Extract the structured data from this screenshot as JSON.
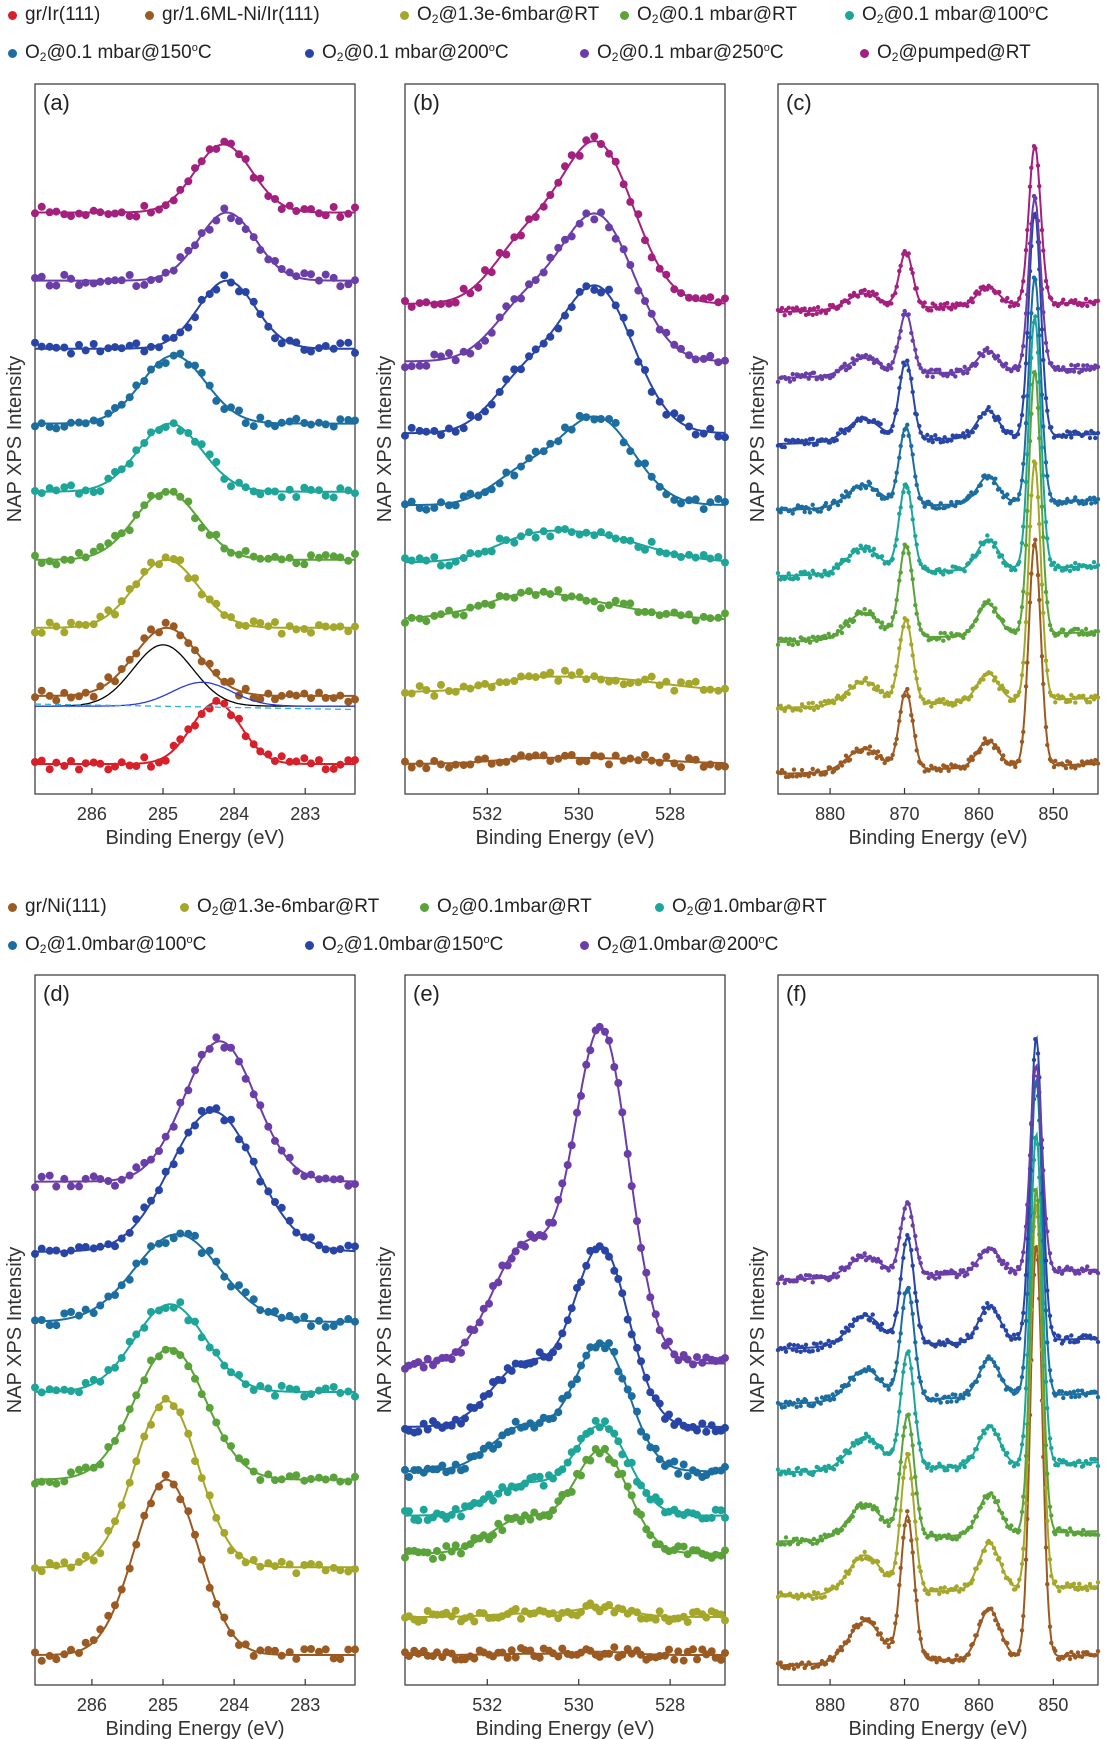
{
  "legend_top": [
    {
      "label": "gr/Ir(111)",
      "color": "#d6202a"
    },
    {
      "label": "gr/1.6ML-Ni/Ir(111)",
      "color": "#9a5a22"
    },
    {
      "label": "O2@1.3e-6mbar@RT",
      "color": "#a5a72a"
    },
    {
      "label": "O2@0.1 mbar@RT",
      "color": "#5aa33a"
    },
    {
      "label": "O2@0.1 mbar@100oC",
      "color": "#1ea59a"
    },
    {
      "label": "O2@0.1 mbar@150oC",
      "color": "#1c6da0"
    },
    {
      "label": "O2@0.1 mbar@200oC",
      "color": "#2845a6"
    },
    {
      "label": "O2@0.1 mbar@250oC",
      "color": "#6a3ea8"
    },
    {
      "label": "O2@pumped@RT",
      "color": "#a3207e"
    }
  ],
  "legend_bottom": [
    {
      "label": "gr/Ni(111)",
      "color": "#9a5a22"
    },
    {
      "label": "O2@1.3e-6mbar@RT",
      "color": "#a5a72a"
    },
    {
      "label": "O2@0.1mbar@RT",
      "color": "#5aa33a"
    },
    {
      "label": "O2@1.0mbar@RT",
      "color": "#1ea59a"
    },
    {
      "label": "O2@1.0mbar@100oC",
      "color": "#1c6da0"
    },
    {
      "label": "O2@1.0mbar@150oC",
      "color": "#2845a6"
    },
    {
      "label": "O2@1.0mbar@200oC",
      "color": "#6a3ea8"
    }
  ],
  "chart_data": [
    {
      "id": "a",
      "type": "line",
      "title": "(a)",
      "xlabel": "Binding Energy (eV)",
      "ylabel": "NAP XPS Intensity",
      "xlim": [
        286.8,
        282.3
      ],
      "xticks": [
        "286",
        "285",
        "284",
        "283"
      ],
      "series": [
        {
          "name": "gr/Ir(111)",
          "color": "#d6202a",
          "center": 284.25,
          "width": 0.35,
          "height": 0.9,
          "offset": 0.0
        },
        {
          "name": "gr/1.6ML-Ni/Ir(111)",
          "color": "#9a5a22",
          "center": 284.95,
          "width": 0.45,
          "height": 1.0,
          "offset": 1.0
        },
        {
          "name": "O2@1.3e-6mbar@RT",
          "color": "#a5a72a",
          "center": 284.95,
          "width": 0.45,
          "height": 1.0,
          "offset": 2.0
        },
        {
          "name": "O2@0.1 mbar@RT",
          "color": "#5aa33a",
          "center": 284.95,
          "width": 0.45,
          "height": 1.0,
          "offset": 3.0
        },
        {
          "name": "O2@0.1 mbar@100oC",
          "color": "#1ea59a",
          "center": 284.9,
          "width": 0.45,
          "height": 1.0,
          "offset": 4.0
        },
        {
          "name": "O2@0.1 mbar@150oC",
          "color": "#1c6da0",
          "center": 284.85,
          "width": 0.45,
          "height": 1.0,
          "offset": 5.0
        },
        {
          "name": "O2@0.1 mbar@200oC",
          "color": "#2845a6",
          "center": 284.1,
          "width": 0.4,
          "height": 1.0,
          "offset": 6.1
        },
        {
          "name": "O2@0.1 mbar@250oC",
          "color": "#6a3ea8",
          "center": 284.1,
          "width": 0.4,
          "height": 1.0,
          "offset": 7.1
        },
        {
          "name": "O2@pumped@RT",
          "color": "#a3207e",
          "center": 284.15,
          "width": 0.4,
          "height": 1.0,
          "offset": 8.1
        }
      ]
    },
    {
      "id": "b",
      "type": "line",
      "title": "(b)",
      "xlabel": "Binding Energy (eV)",
      "ylabel": "NAP XPS Intensity",
      "xlim": [
        533.8,
        526.8
      ],
      "xticks": [
        "532",
        "530",
        "528"
      ],
      "series": [
        {
          "name": "gr/1.6ML-Ni/Ir(111)",
          "color": "#9a5a22",
          "center": 529.7,
          "width": 1.5,
          "height": 0.08,
          "offset": 0.0
        },
        {
          "name": "O2@1.3e-6mbar@RT",
          "color": "#a5a72a",
          "center": 529.7,
          "width": 1.5,
          "height": 0.2,
          "offset": 1.0
        },
        {
          "name": "O2@0.1 mbar@RT",
          "color": "#5aa33a",
          "center": 530.5,
          "width": 1.5,
          "height": 0.3,
          "offset": 2.0
        },
        {
          "name": "O2@0.1 mbar@100oC",
          "color": "#1ea59a",
          "center": 529.9,
          "width": 1.3,
          "height": 0.4,
          "offset": 2.8
        },
        {
          "name": "O2@0.1 mbar@150oC",
          "color": "#1c6da0",
          "center": 529.6,
          "width": 0.8,
          "height": 1.2,
          "offset": 3.6
        },
        {
          "name": "O2@0.1 mbar@200oC",
          "color": "#2845a6",
          "center": 529.6,
          "width": 0.8,
          "height": 2.0,
          "offset": 4.6
        },
        {
          "name": "O2@0.1 mbar@250oC",
          "color": "#6a3ea8",
          "center": 529.6,
          "width": 0.8,
          "height": 2.0,
          "offset": 5.6
        },
        {
          "name": "O2@pumped@RT",
          "color": "#a3207e",
          "center": 529.6,
          "width": 0.8,
          "height": 2.2,
          "offset": 6.4
        }
      ]
    },
    {
      "id": "c",
      "type": "line",
      "title": "(c)",
      "xlabel": "Binding Energy (eV)",
      "ylabel": "NAP XPS Intensity",
      "xlim": [
        887,
        844
      ],
      "xticks": [
        "880",
        "870",
        "860",
        "850"
      ],
      "series": [
        {
          "name": "gr/1.6ML-Ni/Ir(111)",
          "color": "#9a5a22",
          "center": 852.5,
          "width": 0.8,
          "height": 3.4,
          "offset": 0.0
        },
        {
          "name": "O2@1.3e-6mbar@RT",
          "color": "#a5a72a",
          "center": 852.5,
          "width": 0.8,
          "height": 3.6,
          "offset": 1.0
        },
        {
          "name": "O2@0.1 mbar@RT",
          "color": "#5aa33a",
          "center": 852.5,
          "width": 0.8,
          "height": 4.0,
          "offset": 2.0
        },
        {
          "name": "O2@0.1 mbar@100oC",
          "color": "#1ea59a",
          "center": 852.5,
          "width": 0.8,
          "height": 3.8,
          "offset": 3.0
        },
        {
          "name": "O2@0.1 mbar@150oC",
          "color": "#1c6da0",
          "center": 852.5,
          "width": 0.8,
          "height": 3.4,
          "offset": 4.0
        },
        {
          "name": "O2@0.1 mbar@200oC",
          "color": "#2845a6",
          "center": 852.5,
          "width": 0.8,
          "height": 3.4,
          "offset": 5.0
        },
        {
          "name": "O2@0.1 mbar@250oC",
          "color": "#6a3ea8",
          "center": 852.5,
          "width": 0.8,
          "height": 2.6,
          "offset": 6.0
        },
        {
          "name": "O2@pumped@RT",
          "color": "#a3207e",
          "center": 852.5,
          "width": 0.8,
          "height": 2.4,
          "offset": 7.0
        }
      ]
    },
    {
      "id": "d",
      "type": "line",
      "title": "(d)",
      "xlabel": "Binding Energy (eV)",
      "ylabel": "NAP XPS Intensity",
      "xlim": [
        286.8,
        282.3
      ],
      "xticks": [
        "286",
        "285",
        "284",
        "283"
      ],
      "series": [
        {
          "name": "gr/Ni(111)",
          "color": "#9a5a22",
          "center": 284.95,
          "width": 0.45,
          "height": 2.0,
          "offset": 0.0
        },
        {
          "name": "O2@1.3e-6mbar@RT",
          "color": "#a5a72a",
          "center": 284.95,
          "width": 0.45,
          "height": 1.9,
          "offset": 1.0
        },
        {
          "name": "O2@0.1mbar@RT",
          "color": "#5aa33a",
          "center": 284.9,
          "width": 0.5,
          "height": 1.5,
          "offset": 2.0
        },
        {
          "name": "O2@1.0mbar@RT",
          "color": "#1ea59a",
          "center": 284.9,
          "width": 0.5,
          "height": 1.0,
          "offset": 3.0
        },
        {
          "name": "O2@1.0mbar@100oC",
          "color": "#1c6da0",
          "center": 284.8,
          "width": 0.6,
          "height": 1.0,
          "offset": 3.8
        },
        {
          "name": "O2@1.0mbar@150oC",
          "color": "#2845a6",
          "center": 284.3,
          "width": 0.6,
          "height": 1.6,
          "offset": 4.6
        },
        {
          "name": "O2@1.0mbar@200oC",
          "color": "#6a3ea8",
          "center": 284.2,
          "width": 0.5,
          "height": 1.6,
          "offset": 5.4
        }
      ]
    },
    {
      "id": "e",
      "type": "line",
      "title": "(e)",
      "xlabel": "Binding Energy (eV)",
      "ylabel": "NAP XPS Intensity",
      "xlim": [
        533.8,
        526.8
      ],
      "xticks": [
        "532",
        "530",
        "528"
      ],
      "series": [
        {
          "name": "gr/Ni(111)",
          "color": "#9a5a22",
          "center": 529.5,
          "width": 0.6,
          "height": 0.05,
          "offset": 0.0
        },
        {
          "name": "O2@1.3e-6mbar@RT",
          "color": "#a5a72a",
          "center": 529.5,
          "width": 0.6,
          "height": 0.15,
          "offset": 0.6
        },
        {
          "name": "O2@0.1mbar@RT",
          "color": "#5aa33a",
          "center": 529.5,
          "width": 0.6,
          "height": 1.6,
          "offset": 1.6
        },
        {
          "name": "O2@1.0mbar@RT",
          "color": "#1ea59a",
          "center": 529.5,
          "width": 0.6,
          "height": 1.4,
          "offset": 2.2
        },
        {
          "name": "O2@1.0mbar@100oC",
          "color": "#1c6da0",
          "center": 529.5,
          "width": 0.6,
          "height": 2.0,
          "offset": 2.9
        },
        {
          "name": "O2@1.0mbar@150oC",
          "color": "#2845a6",
          "center": 529.5,
          "width": 0.6,
          "height": 2.8,
          "offset": 3.6
        },
        {
          "name": "O2@1.0mbar@200oC",
          "color": "#6a3ea8",
          "center": 529.5,
          "width": 0.6,
          "height": 5.2,
          "offset": 4.6
        }
      ]
    },
    {
      "id": "f",
      "type": "line",
      "title": "(f)",
      "xlabel": "Binding Energy (eV)",
      "ylabel": "NAP XPS Intensity",
      "xlim": [
        887,
        844
      ],
      "xticks": [
        "880",
        "870",
        "860",
        "850"
      ],
      "series": [
        {
          "name": "gr/Ni(111)",
          "color": "#9a5a22",
          "center": 852.3,
          "width": 0.8,
          "height": 6.0,
          "offset": 0.0
        },
        {
          "name": "O2@1.3e-6mbar@RT",
          "color": "#a5a72a",
          "center": 852.3,
          "width": 0.8,
          "height": 5.6,
          "offset": 1.0
        },
        {
          "name": "O2@0.1mbar@RT",
          "color": "#5aa33a",
          "center": 852.3,
          "width": 0.8,
          "height": 5.0,
          "offset": 1.8
        },
        {
          "name": "O2@1.0mbar@RT",
          "color": "#1ea59a",
          "center": 852.3,
          "width": 0.8,
          "height": 4.8,
          "offset": 2.8
        },
        {
          "name": "O2@1.0mbar@100oC",
          "color": "#1c6da0",
          "center": 852.3,
          "width": 0.8,
          "height": 4.6,
          "offset": 3.8
        },
        {
          "name": "O2@1.0mbar@150oC",
          "color": "#2845a6",
          "center": 852.3,
          "width": 0.8,
          "height": 4.4,
          "offset": 4.6
        },
        {
          "name": "O2@1.0mbar@200oC",
          "color": "#6a3ea8",
          "center": 852.3,
          "width": 0.8,
          "height": 3.0,
          "offset": 5.6
        }
      ]
    }
  ]
}
